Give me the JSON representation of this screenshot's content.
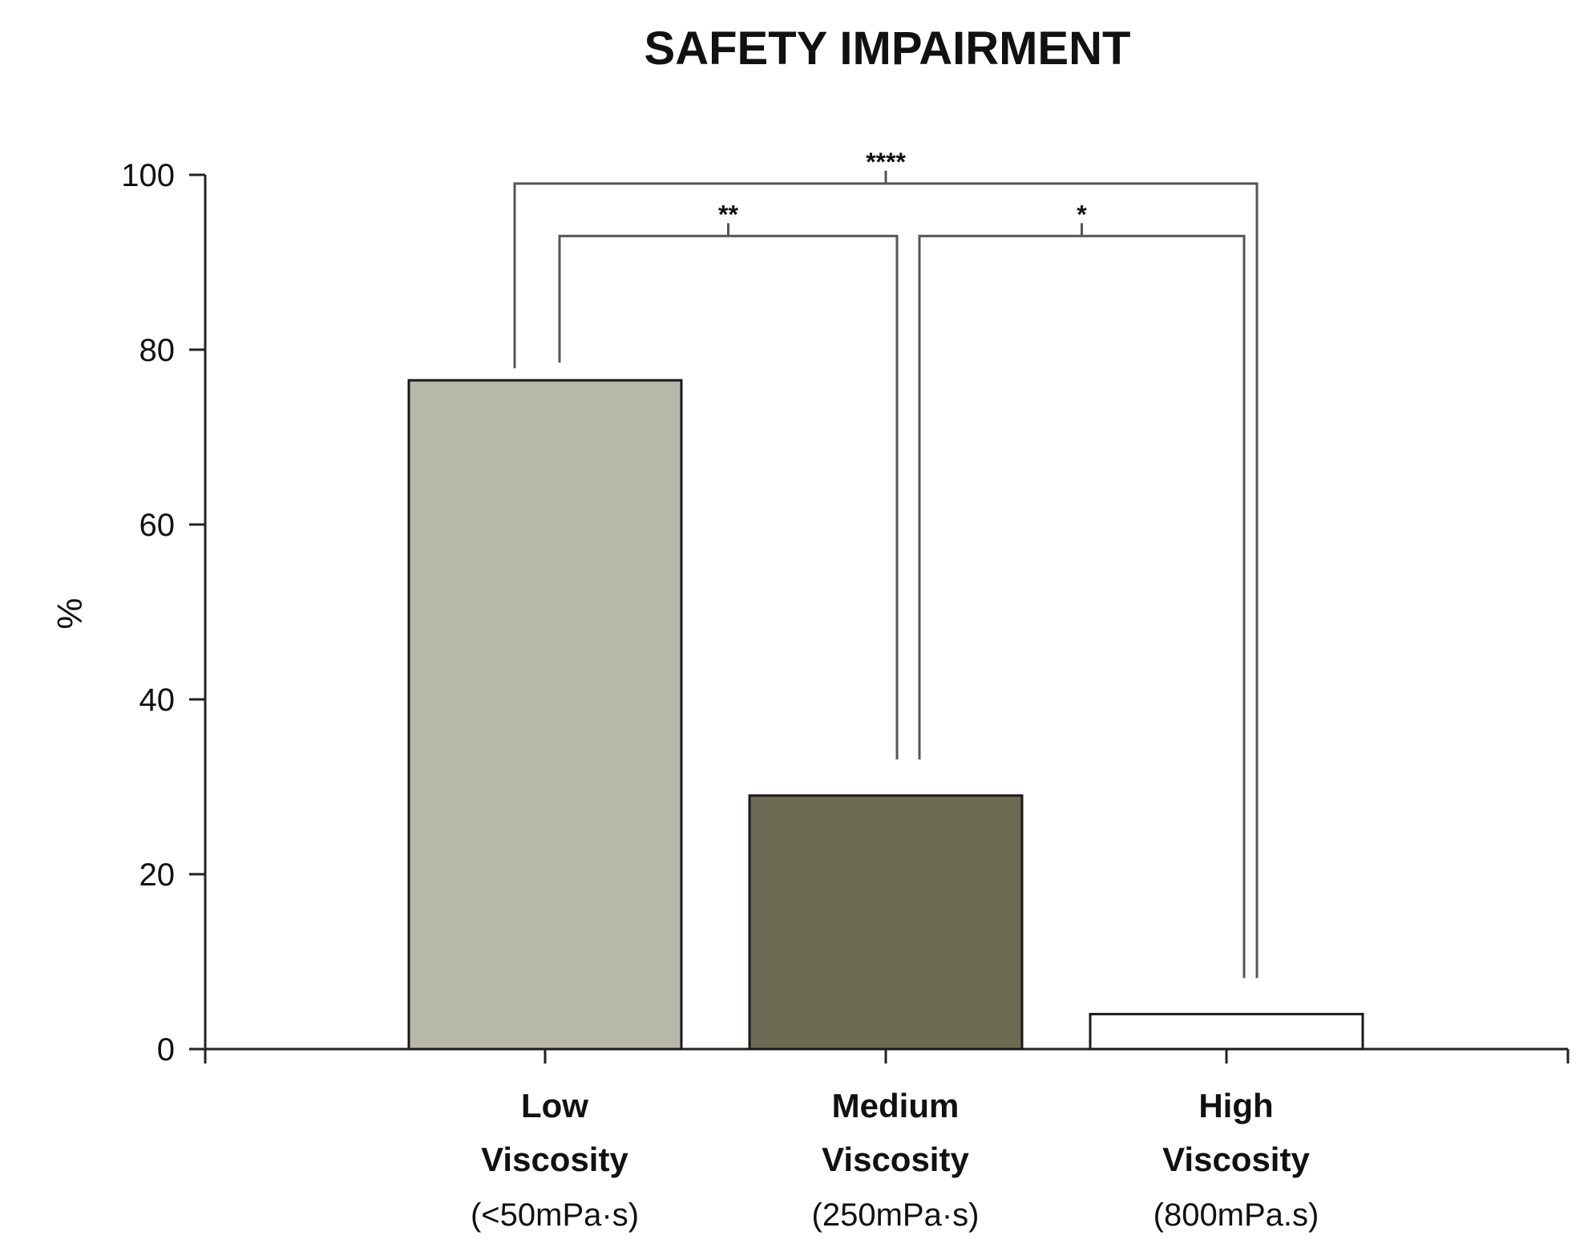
{
  "chart_data": {
    "type": "bar",
    "title": "SAFETY IMPAIRMENT",
    "xlabel": "",
    "ylabel": "%",
    "ylim": [
      0,
      100
    ],
    "yticks": [
      0,
      20,
      40,
      60,
      80,
      100
    ],
    "categories": [
      {
        "lines": [
          "Low",
          "Viscosity"
        ],
        "sub": "(<50mPa·s)"
      },
      {
        "lines": [
          "Medium",
          "Viscosity"
        ],
        "sub": "(250mPa·s)"
      },
      {
        "lines": [
          "High",
          "Viscosity"
        ],
        "sub": "(800mPa.s)"
      }
    ],
    "values": [
      76.5,
      29,
      4
    ],
    "colors": [
      "#b7b7aa",
      "#6b6a52",
      "#ffffff"
    ],
    "grid": false,
    "significance": [
      {
        "from": 0,
        "to": 2,
        "label": "****",
        "level": 99
      },
      {
        "from": 0,
        "to": 1,
        "label": "**",
        "level": 93
      },
      {
        "from": 1,
        "to": 2,
        "label": "*",
        "level": 93
      }
    ]
  }
}
